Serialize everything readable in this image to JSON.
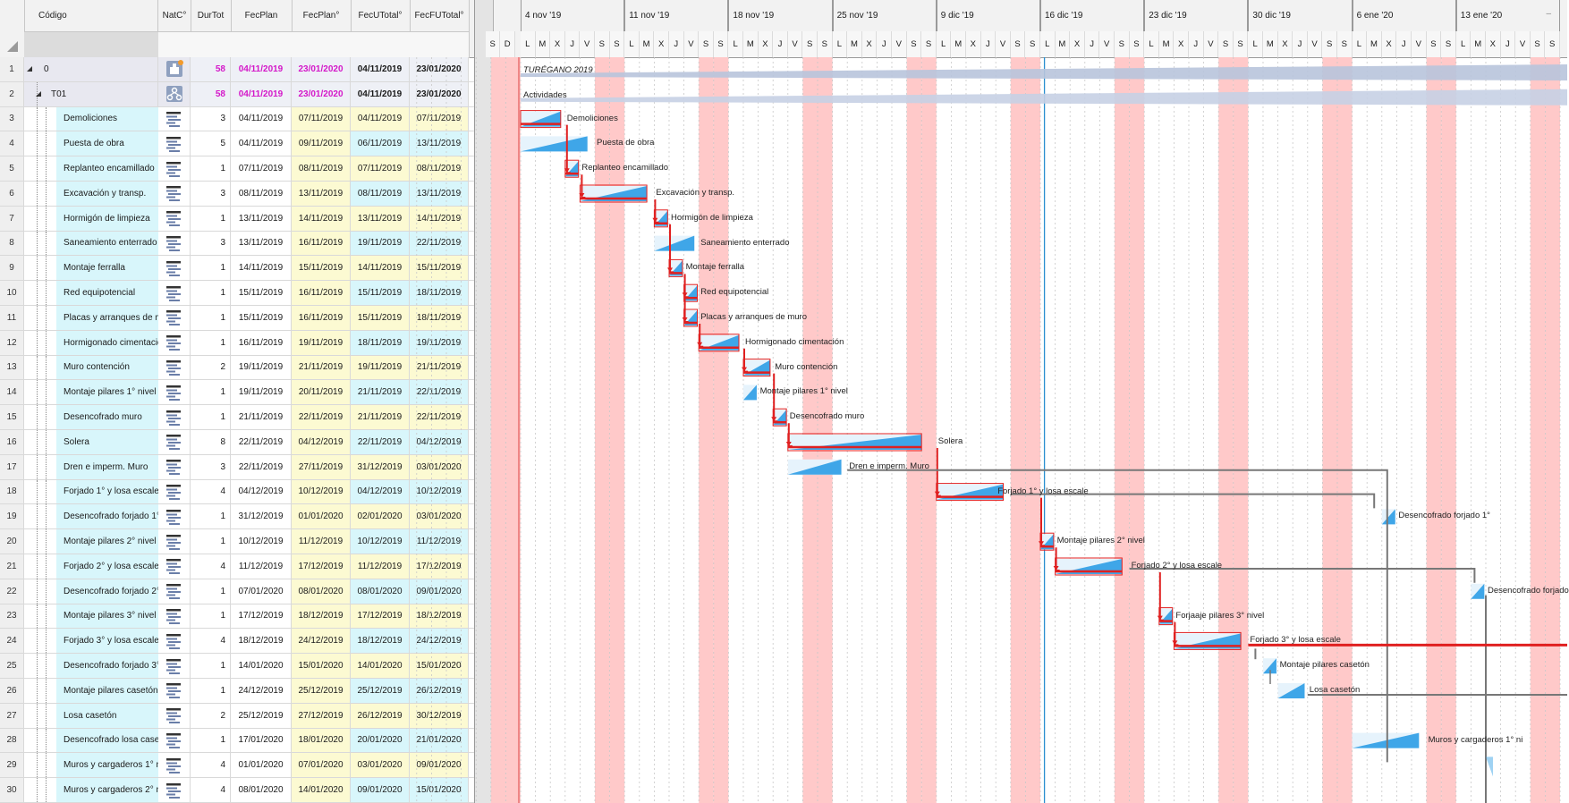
{
  "grid": {
    "columns": [
      {
        "key": "code",
        "label": "Código"
      },
      {
        "key": "natc",
        "label": "NatC°"
      },
      {
        "key": "durtot",
        "label": "DurTot"
      },
      {
        "key": "fecplan",
        "label": "FecPlan"
      },
      {
        "key": "fecplan2",
        "label": "FecPlan°"
      },
      {
        "key": "fecutotal",
        "label": "FecUTotal°"
      },
      {
        "key": "fecftotal",
        "label": "FecFUTotal°"
      }
    ],
    "rows": [
      {
        "n": "1",
        "name": "0",
        "dur": "58",
        "fp": "04/11/2019",
        "fp2": "23/01/2020",
        "fu": "04/11/2019",
        "ff": "23/01/2020",
        "level": 0,
        "kind": "root"
      },
      {
        "n": "2",
        "name": "T01",
        "dur": "58",
        "fp": "04/11/2019",
        "fp2": "23/01/2020",
        "fu": "04/11/2019",
        "ff": "23/01/2020",
        "level": 1,
        "kind": "group"
      },
      {
        "n": "3",
        "name": "Demoliciones",
        "dur": "3",
        "fp": "04/11/2019",
        "fp2": "07/11/2019",
        "fu": "04/11/2019",
        "ff": "07/11/2019",
        "level": 2
      },
      {
        "n": "4",
        "name": "Puesta de obra",
        "dur": "5",
        "fp": "04/11/2019",
        "fp2": "09/11/2019",
        "fu": "06/11/2019",
        "ff": "13/11/2019",
        "level": 2
      },
      {
        "n": "5",
        "name": "Replanteo encamillado",
        "dur": "1",
        "fp": "07/11/2019",
        "fp2": "08/11/2019",
        "fu": "07/11/2019",
        "ff": "08/11/2019",
        "level": 2
      },
      {
        "n": "6",
        "name": "Excavación y transp.",
        "dur": "3",
        "fp": "08/11/2019",
        "fp2": "13/11/2019",
        "fu": "08/11/2019",
        "ff": "13/11/2019",
        "level": 2
      },
      {
        "n": "7",
        "name": "Hormigón de limpieza",
        "dur": "1",
        "fp": "13/11/2019",
        "fp2": "14/11/2019",
        "fu": "13/11/2019",
        "ff": "14/11/2019",
        "level": 2
      },
      {
        "n": "8",
        "name": "Saneamiento enterrado",
        "dur": "3",
        "fp": "13/11/2019",
        "fp2": "16/11/2019",
        "fu": "19/11/2019",
        "ff": "22/11/2019",
        "level": 2
      },
      {
        "n": "9",
        "name": "Montaje ferralla",
        "dur": "1",
        "fp": "14/11/2019",
        "fp2": "15/11/2019",
        "fu": "14/11/2019",
        "ff": "15/11/2019",
        "level": 2
      },
      {
        "n": "10",
        "name": "Red equipotencial",
        "dur": "1",
        "fp": "15/11/2019",
        "fp2": "16/11/2019",
        "fu": "15/11/2019",
        "ff": "18/11/2019",
        "level": 2
      },
      {
        "n": "11",
        "name": "Placas y arranques de m",
        "dur": "1",
        "fp": "15/11/2019",
        "fp2": "16/11/2019",
        "fu": "15/11/2019",
        "ff": "18/11/2019",
        "level": 2
      },
      {
        "n": "12",
        "name": "Hormigonado cimentación",
        "dur": "1",
        "fp": "16/11/2019",
        "fp2": "19/11/2019",
        "fu": "18/11/2019",
        "ff": "19/11/2019",
        "level": 2
      },
      {
        "n": "13",
        "name": "Muro contención",
        "dur": "2",
        "fp": "19/11/2019",
        "fp2": "21/11/2019",
        "fu": "19/11/2019",
        "ff": "21/11/2019",
        "level": 2
      },
      {
        "n": "14",
        "name": "Montaje pilares 1° nivel",
        "dur": "1",
        "fp": "19/11/2019",
        "fp2": "20/11/2019",
        "fu": "21/11/2019",
        "ff": "22/11/2019",
        "level": 2
      },
      {
        "n": "15",
        "name": "Desencofrado muro",
        "dur": "1",
        "fp": "21/11/2019",
        "fp2": "22/11/2019",
        "fu": "21/11/2019",
        "ff": "22/11/2019",
        "level": 2
      },
      {
        "n": "16",
        "name": "Solera",
        "dur": "8",
        "fp": "22/11/2019",
        "fp2": "04/12/2019",
        "fu": "22/11/2019",
        "ff": "04/12/2019",
        "level": 2
      },
      {
        "n": "17",
        "name": "Dren e imperm. Muro",
        "dur": "3",
        "fp": "22/11/2019",
        "fp2": "27/11/2019",
        "fu": "31/12/2019",
        "ff": "03/01/2020",
        "level": 2
      },
      {
        "n": "18",
        "name": "Forjado 1° y losa escale",
        "dur": "4",
        "fp": "04/12/2019",
        "fp2": "10/12/2019",
        "fu": "04/12/2019",
        "ff": "10/12/2019",
        "level": 2
      },
      {
        "n": "19",
        "name": "Desencofrado forjado 1°",
        "dur": "1",
        "fp": "31/12/2019",
        "fp2": "01/01/2020",
        "fu": "02/01/2020",
        "ff": "03/01/2020",
        "level": 2
      },
      {
        "n": "20",
        "name": "Montaje pilares 2° nivel",
        "dur": "1",
        "fp": "10/12/2019",
        "fp2": "11/12/2019",
        "fu": "10/12/2019",
        "ff": "11/12/2019",
        "level": 2
      },
      {
        "n": "21",
        "name": "Forjado 2° y losa escale",
        "dur": "4",
        "fp": "11/12/2019",
        "fp2": "17/12/2019",
        "fu": "11/12/2019",
        "ff": "17/12/2019",
        "level": 2
      },
      {
        "n": "22",
        "name": "Desencofrado forjado 2°",
        "dur": "1",
        "fp": "07/01/2020",
        "fp2": "08/01/2020",
        "fu": "08/01/2020",
        "ff": "09/01/2020",
        "level": 2
      },
      {
        "n": "23",
        "name": "Montaje pilares 3° nivel",
        "dur": "1",
        "fp": "17/12/2019",
        "fp2": "18/12/2019",
        "fu": "17/12/2019",
        "ff": "18/12/2019",
        "level": 2
      },
      {
        "n": "24",
        "name": "Forjado 3° y losa escale",
        "dur": "4",
        "fp": "18/12/2019",
        "fp2": "24/12/2019",
        "fu": "18/12/2019",
        "ff": "24/12/2019",
        "level": 2
      },
      {
        "n": "25",
        "name": "Desencofrado forjado 3°",
        "dur": "1",
        "fp": "14/01/2020",
        "fp2": "15/01/2020",
        "fu": "14/01/2020",
        "ff": "15/01/2020",
        "level": 2
      },
      {
        "n": "26",
        "name": "Montaje pilares casetón",
        "dur": "1",
        "fp": "24/12/2019",
        "fp2": "25/12/2019",
        "fu": "25/12/2019",
        "ff": "26/12/2019",
        "level": 2
      },
      {
        "n": "27",
        "name": "Losa casetón",
        "dur": "2",
        "fp": "25/12/2019",
        "fp2": "27/12/2019",
        "fu": "26/12/2019",
        "ff": "30/12/2019",
        "level": 2
      },
      {
        "n": "28",
        "name": "Desencofrado losa caset",
        "dur": "1",
        "fp": "17/01/2020",
        "fp2": "18/01/2020",
        "fu": "20/01/2020",
        "ff": "21/01/2020",
        "level": 2
      },
      {
        "n": "29",
        "name": "Muros y cargaderos 1° ni",
        "dur": "4",
        "fp": "01/01/2020",
        "fp2": "07/01/2020",
        "fu": "03/01/2020",
        "ff": "09/01/2020",
        "level": 2
      },
      {
        "n": "30",
        "name": "Muros y cargaderos 2° ni",
        "dur": "4",
        "fp": "08/01/2020",
        "fp2": "14/01/2020",
        "fu": "09/01/2020",
        "ff": "15/01/2020",
        "level": 2
      }
    ]
  },
  "gantt": {
    "weeks": [
      "4 nov '19",
      "11 nov '19",
      "18 nov '19",
      "25 nov '19",
      "9 dic '19",
      "16 dic '19",
      "23 dic '19",
      "30 dic '19",
      "6 ene '20",
      "13 ene '20"
    ],
    "days_first": [
      "S",
      "D"
    ],
    "days_week": [
      "L",
      "M",
      "X",
      "J",
      "V",
      "S",
      "S"
    ],
    "summary_labels": {
      "project": "TURÉGANO 2019",
      "group": "Actividades"
    },
    "task_labels": [
      "Demoliciones",
      "Puesta de obra",
      "Replanteo encamillado",
      "Excavación y transp.",
      "Hormigón de limpieza",
      "Saneamiento enterrado",
      "Montaje ferralla",
      "Red equipotencial",
      "Placas y arranques de muro",
      "Hormigonado cimentación",
      "Muro contención",
      "Montaje pilares 1° nivel",
      "Desencofrado muro",
      "Solera",
      "Dren e imperm. Muro",
      "Forjado 1° y losa escale",
      "Desencofrado forjado 1°",
      "Montaje pilares 2° nivel",
      "Forjado 2° y losa escale",
      "Desencofrado forjado",
      "Forjaaje pilares 3° nivel",
      "Forjado 3° y losa escale",
      "Montaje pilares casetón",
      "Losa casetón",
      "Muros y cargaderos 1° ni"
    ]
  },
  "colors": {
    "weekend": "#ffc9c9",
    "bar": "#3fa6e8",
    "critical": "#e02020",
    "link": "#777777",
    "today": "#2a8fd0",
    "cyan_cell": "#d8f6fb",
    "yellow_cell": "#fcfad2",
    "magenta_text": "#d417c9"
  }
}
